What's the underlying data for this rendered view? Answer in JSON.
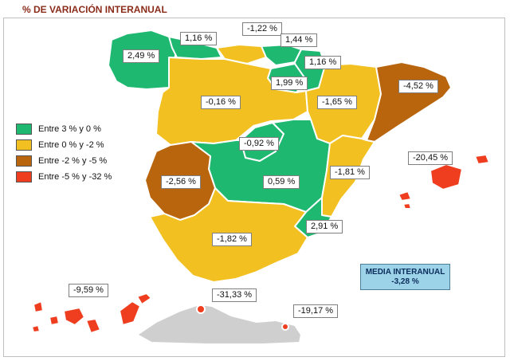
{
  "title": "% DE VARIACIÓN INTERANUAL",
  "colors": {
    "green": "#1eb871",
    "yellow": "#f2c121",
    "brown": "#b8650e",
    "red": "#ef3e1f",
    "gray": "#cfcfcf",
    "media_bg": "#9dd3e8"
  },
  "legend": [
    {
      "label": "Entre 3 % y 0 %",
      "color": "#1eb871"
    },
    {
      "label": "Entre 0 % y -2 %",
      "color": "#f2c121"
    },
    {
      "label": "Entre -2 % y -5 %",
      "color": "#b8650e"
    },
    {
      "label": "Entre -5 % y -32 %",
      "color": "#ef3e1f"
    }
  ],
  "regions": {
    "galicia": "2,49 %",
    "asturias": "1,16 %",
    "cantabria": "-1,22 %",
    "pais_vasco": "1,44 %",
    "navarra": "1,16 %",
    "la_rioja": "1,99 %",
    "castilla_leon": "-0,16 %",
    "aragon": "-1,65 %",
    "cataluna": "-4,52 %",
    "madrid": "-0,92 %",
    "castilla_la_mancha": "0,59 %",
    "comunidad_valenciana": "-1,81 %",
    "baleares": "-20,45 %",
    "extremadura": "-2,56 %",
    "murcia": "2,91 %",
    "andalucia": "-1,82 %",
    "canarias": "-9,59 %",
    "ceuta": "-31,33 %",
    "melilla": "-19,17 %"
  },
  "media": {
    "label": "MEDIA INTERANUAL",
    "value": "-3,28 %"
  }
}
